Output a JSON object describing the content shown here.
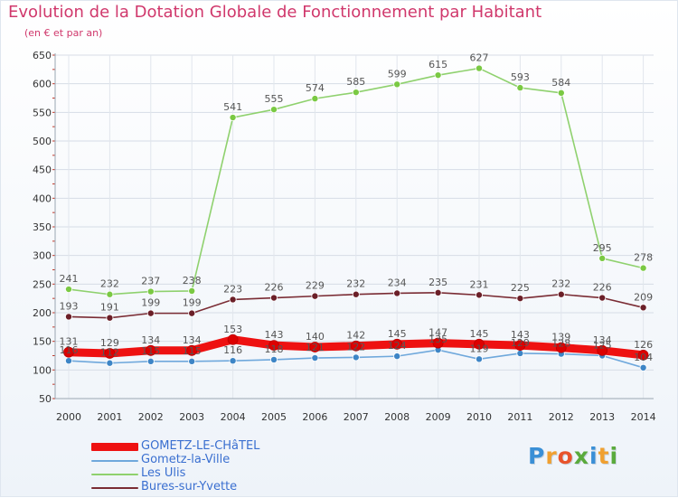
{
  "title": "Evolution de la Dotation Globale de Fonctionnement par Habitant",
  "subtitle": "(en € et par an)",
  "brand": {
    "letters": [
      "P",
      "r",
      "o",
      "x",
      "i",
      "t",
      "i"
    ],
    "colors": [
      "#3a8fd6",
      "#f0a030",
      "#e8532b",
      "#5aaa3c",
      "#3a8fd6",
      "#f0a030",
      "#5aaa3c"
    ]
  },
  "chart_data": {
    "type": "line",
    "title": "Evolution de la Dotation Globale de Fonctionnement par Habitant",
    "subtitle": "(en € et par an)",
    "x": [
      "2000",
      "2001",
      "2002",
      "2003",
      "2004",
      "2005",
      "2006",
      "2007",
      "2008",
      "2009",
      "2010",
      "2011",
      "2012",
      "2013",
      "2014"
    ],
    "ylim": [
      50,
      650
    ],
    "yticks": [
      50,
      100,
      150,
      200,
      250,
      300,
      350,
      400,
      450,
      500,
      550,
      600,
      650
    ],
    "grid": true,
    "legend_position": "bottom-left",
    "series": [
      {
        "name": "Les Ulis",
        "color": "#8fd16e",
        "marker": "#7ac943",
        "values": [
          241,
          232,
          237,
          238,
          541,
          555,
          574,
          585,
          599,
          615,
          627,
          593,
          584,
          295,
          278
        ],
        "labels_above": true
      },
      {
        "name": "Bures-sur-Yvette",
        "color": "#7a2c34",
        "marker": "#6b1f28",
        "values": [
          193,
          191,
          199,
          199,
          223,
          226,
          229,
          232,
          234,
          235,
          231,
          225,
          232,
          226,
          209
        ],
        "labels_above": true
      },
      {
        "name": "GOMETZ-LE-CHâTEL",
        "color": "#ee1111",
        "marker": "#dd0000",
        "values": [
          131,
          129,
          134,
          134,
          153,
          143,
          140,
          142,
          145,
          147,
          145,
          143,
          139,
          134,
          126
        ],
        "labels_above": true,
        "thick": true
      },
      {
        "name": "Gometz-la-Ville",
        "color": "#6fa8dc",
        "marker": "#3d85c6",
        "values": [
          116,
          112,
          115,
          115,
          116,
          118,
          121,
          122,
          124,
          135,
          119,
          129,
          128,
          125,
          104
        ],
        "labels_above": false
      }
    ]
  },
  "legend": [
    {
      "label": "GOMETZ-LE-CHâTEL",
      "color": "#ee1111",
      "text_color": "#3a6fd0"
    },
    {
      "label": "Gometz-la-Ville",
      "color": "#6fa8dc",
      "text_color": "#3a6fd0"
    },
    {
      "label": "Les Ulis",
      "color": "#8fd16e",
      "text_color": "#3a6fd0"
    },
    {
      "label": "Bures-sur-Yvette",
      "color": "#7a2c34",
      "text_color": "#3a6fd0"
    }
  ]
}
